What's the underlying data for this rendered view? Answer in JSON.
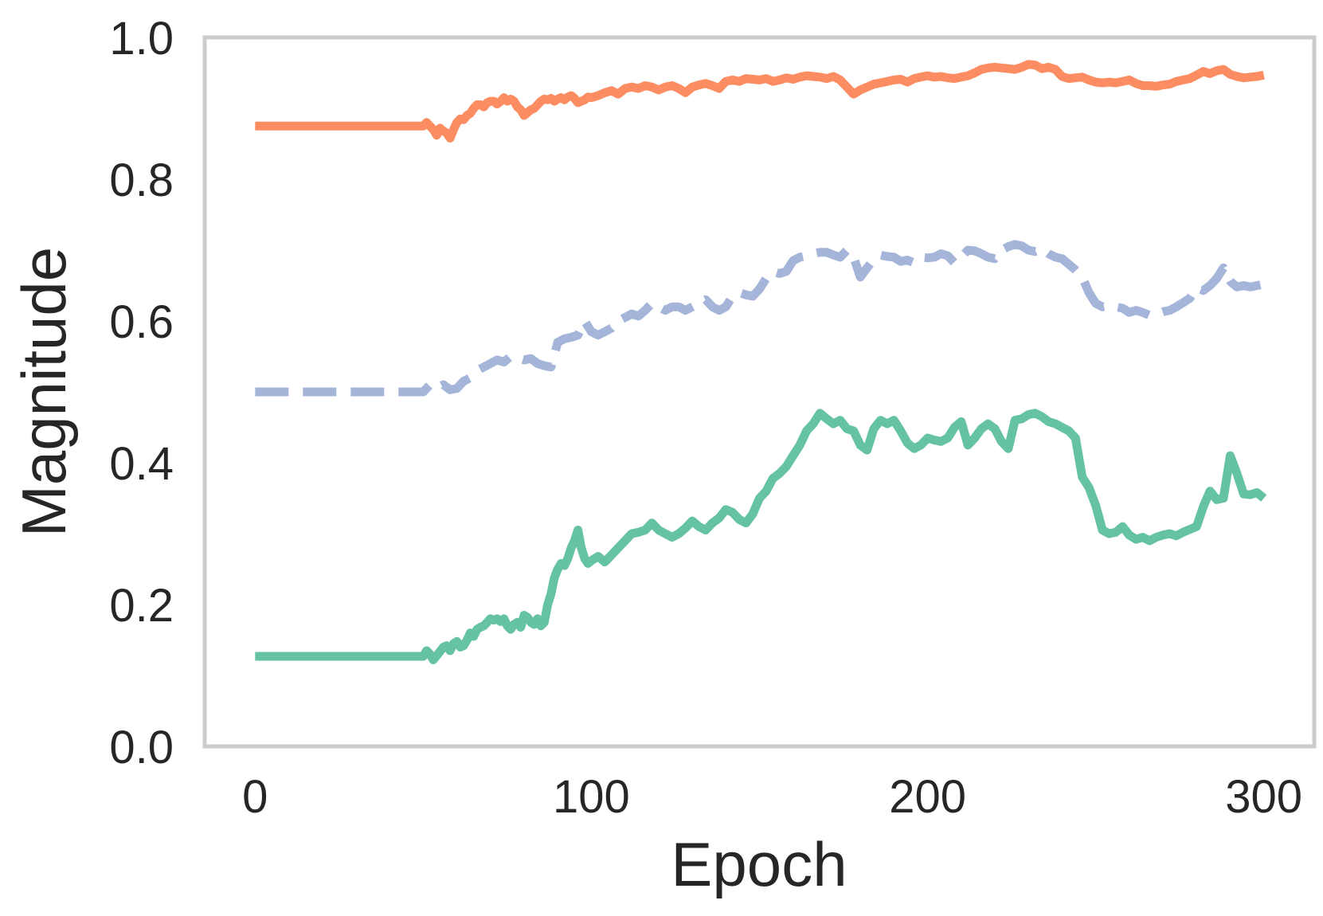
{
  "chart_data": {
    "type": "line",
    "title": "",
    "xlabel": "Epoch",
    "ylabel": "Magnitude",
    "xlim": [
      -15,
      315
    ],
    "ylim": [
      0.0,
      1.0
    ],
    "xticks": [
      0,
      100,
      200,
      300
    ],
    "xtick_labels": [
      "0",
      "100",
      "200",
      "300"
    ],
    "yticks": [
      0.0,
      0.2,
      0.4,
      0.6,
      0.8,
      1.0
    ],
    "ytick_labels": [
      "0.0",
      "0.2",
      "0.4",
      "0.6",
      "0.8",
      "1.0"
    ],
    "grid": false,
    "legend": "none",
    "series": [
      {
        "color": "#fc8d62",
        "style": "solid",
        "x": [
          0,
          50,
          51,
          52,
          53,
          54,
          55,
          56,
          57,
          58,
          59,
          60,
          61,
          62,
          63,
          64,
          65,
          66,
          67,
          68,
          69,
          70,
          71,
          72,
          73,
          74,
          75,
          76,
          77,
          78,
          79,
          80,
          81,
          82,
          83,
          84,
          85,
          86,
          87,
          88,
          89,
          90,
          91,
          92,
          93,
          94,
          95,
          96,
          97,
          98,
          99,
          100,
          102,
          104,
          106,
          108,
          110,
          112,
          114,
          116,
          118,
          120,
          122,
          124,
          126,
          128,
          130,
          132,
          134,
          136,
          138,
          140,
          142,
          144,
          146,
          148,
          150,
          152,
          154,
          156,
          158,
          160,
          162,
          164,
          166,
          168,
          170,
          172,
          174,
          176,
          178,
          180,
          182,
          184,
          186,
          188,
          190,
          192,
          194,
          196,
          198,
          200,
          202,
          204,
          206,
          208,
          210,
          212,
          214,
          216,
          218,
          220,
          222,
          224,
          226,
          228,
          230,
          232,
          234,
          236,
          238,
          240,
          242,
          244,
          246,
          248,
          250,
          252,
          254,
          256,
          258,
          260,
          262,
          264,
          266,
          268,
          270,
          272,
          274,
          276,
          278,
          280,
          282,
          284,
          286,
          288,
          290,
          292,
          294,
          296,
          298,
          300
        ],
        "y": [
          0.875,
          0.875,
          0.88,
          0.875,
          0.87,
          0.862,
          0.872,
          0.868,
          0.865,
          0.858,
          0.87,
          0.88,
          0.885,
          0.884,
          0.89,
          0.893,
          0.9,
          0.905,
          0.905,
          0.902,
          0.908,
          0.91,
          0.91,
          0.906,
          0.91,
          0.915,
          0.91,
          0.913,
          0.91,
          0.902,
          0.898,
          0.89,
          0.894,
          0.898,
          0.9,
          0.905,
          0.91,
          0.913,
          0.912,
          0.914,
          0.91,
          0.913,
          0.915,
          0.912,
          0.916,
          0.918,
          0.914,
          0.908,
          0.91,
          0.912,
          0.916,
          0.915,
          0.918,
          0.922,
          0.925,
          0.92,
          0.928,
          0.93,
          0.928,
          0.932,
          0.93,
          0.926,
          0.93,
          0.932,
          0.928,
          0.922,
          0.93,
          0.933,
          0.935,
          0.932,
          0.928,
          0.938,
          0.94,
          0.938,
          0.942,
          0.941,
          0.94,
          0.942,
          0.938,
          0.94,
          0.943,
          0.941,
          0.944,
          0.946,
          0.945,
          0.944,
          0.942,
          0.945,
          0.94,
          0.93,
          0.92,
          0.926,
          0.93,
          0.934,
          0.936,
          0.938,
          0.94,
          0.941,
          0.937,
          0.942,
          0.944,
          0.946,
          0.944,
          0.945,
          0.943,
          0.942,
          0.944,
          0.946,
          0.95,
          0.955,
          0.957,
          0.958,
          0.957,
          0.956,
          0.955,
          0.958,
          0.962,
          0.961,
          0.956,
          0.958,
          0.955,
          0.945,
          0.942,
          0.943,
          0.944,
          0.94,
          0.937,
          0.936,
          0.937,
          0.936,
          0.938,
          0.94,
          0.935,
          0.932,
          0.932,
          0.931,
          0.933,
          0.934,
          0.938,
          0.94,
          0.942,
          0.947,
          0.952,
          0.949,
          0.953,
          0.955,
          0.948,
          0.945,
          0.943,
          0.944,
          0.945,
          0.947
        ]
      },
      {
        "color": "#a5b5d9",
        "style": "dashed",
        "x": [
          0,
          50,
          52,
          54,
          56,
          58,
          60,
          62,
          64,
          66,
          68,
          70,
          72,
          74,
          76,
          78,
          80,
          82,
          84,
          86,
          88,
          90,
          92,
          94,
          96,
          98,
          100,
          102,
          104,
          106,
          108,
          110,
          112,
          114,
          116,
          118,
          120,
          122,
          124,
          126,
          128,
          130,
          132,
          134,
          136,
          138,
          140,
          142,
          144,
          146,
          148,
          150,
          152,
          154,
          156,
          158,
          160,
          162,
          164,
          166,
          168,
          170,
          172,
          174,
          176,
          178,
          180,
          182,
          184,
          186,
          188,
          190,
          192,
          194,
          196,
          198,
          200,
          202,
          204,
          206,
          208,
          210,
          212,
          214,
          216,
          218,
          220,
          222,
          224,
          226,
          228,
          230,
          232,
          234,
          236,
          238,
          240,
          242,
          244,
          246,
          248,
          250,
          252,
          254,
          256,
          258,
          260,
          262,
          264,
          266,
          268,
          270,
          272,
          274,
          276,
          278,
          280,
          282,
          284,
          286,
          288,
          290,
          292,
          294,
          296,
          298,
          300
        ],
        "y": [
          0.5,
          0.5,
          0.51,
          0.505,
          0.51,
          0.503,
          0.505,
          0.515,
          0.52,
          0.53,
          0.535,
          0.54,
          0.545,
          0.542,
          0.55,
          0.548,
          0.545,
          0.547,
          0.54,
          0.537,
          0.535,
          0.57,
          0.575,
          0.577,
          0.58,
          0.6,
          0.585,
          0.58,
          0.585,
          0.59,
          0.6,
          0.605,
          0.61,
          0.607,
          0.615,
          0.625,
          0.62,
          0.615,
          0.62,
          0.62,
          0.615,
          0.62,
          0.625,
          0.63,
          0.62,
          0.615,
          0.62,
          0.635,
          0.64,
          0.637,
          0.635,
          0.645,
          0.66,
          0.67,
          0.667,
          0.67,
          0.685,
          0.69,
          0.692,
          0.695,
          0.697,
          0.697,
          0.693,
          0.69,
          0.7,
          0.69,
          0.662,
          0.675,
          0.687,
          0.693,
          0.691,
          0.69,
          0.684,
          0.686,
          0.682,
          0.69,
          0.689,
          0.69,
          0.695,
          0.692,
          0.682,
          0.69,
          0.7,
          0.699,
          0.695,
          0.69,
          0.688,
          0.7,
          0.705,
          0.708,
          0.706,
          0.7,
          0.698,
          0.702,
          0.695,
          0.69,
          0.688,
          0.68,
          0.672,
          0.662,
          0.64,
          0.625,
          0.62,
          0.622,
          0.62,
          0.618,
          0.612,
          0.615,
          0.612,
          0.608,
          0.61,
          0.613,
          0.615,
          0.62,
          0.626,
          0.632,
          0.647,
          0.643,
          0.65,
          0.66,
          0.675,
          0.656,
          0.648,
          0.65,
          0.648,
          0.65,
          0.652
        ]
      },
      {
        "color": "#66c2a5",
        "style": "solid",
        "x": [
          0,
          50,
          51,
          52,
          53,
          54,
          55,
          56,
          57,
          58,
          59,
          60,
          61,
          62,
          63,
          64,
          65,
          66,
          67,
          68,
          69,
          70,
          71,
          72,
          73,
          74,
          75,
          76,
          77,
          78,
          79,
          80,
          81,
          82,
          83,
          84,
          85,
          86,
          87,
          88,
          89,
          90,
          91,
          92,
          93,
          94,
          95,
          96,
          97,
          98,
          99,
          100,
          102,
          104,
          106,
          108,
          110,
          112,
          114,
          116,
          118,
          120,
          122,
          124,
          126,
          128,
          130,
          132,
          134,
          136,
          138,
          140,
          142,
          144,
          146,
          148,
          150,
          152,
          154,
          156,
          158,
          160,
          162,
          164,
          166,
          168,
          170,
          172,
          174,
          176,
          178,
          180,
          182,
          184,
          186,
          188,
          190,
          192,
          194,
          196,
          198,
          200,
          202,
          204,
          206,
          208,
          210,
          212,
          214,
          216,
          218,
          220,
          222,
          224,
          226,
          228,
          230,
          232,
          234,
          236,
          238,
          240,
          242,
          244,
          246,
          248,
          250,
          252,
          254,
          256,
          258,
          260,
          262,
          264,
          266,
          268,
          270,
          272,
          274,
          276,
          278,
          280,
          282,
          284,
          286,
          288,
          290,
          292,
          294,
          296,
          298,
          300
        ],
        "y": [
          0.127,
          0.127,
          0.135,
          0.13,
          0.122,
          0.128,
          0.134,
          0.14,
          0.142,
          0.135,
          0.145,
          0.148,
          0.14,
          0.142,
          0.15,
          0.16,
          0.155,
          0.165,
          0.168,
          0.17,
          0.175,
          0.18,
          0.178,
          0.18,
          0.176,
          0.18,
          0.17,
          0.165,
          0.172,
          0.175,
          0.168,
          0.185,
          0.182,
          0.175,
          0.172,
          0.18,
          0.17,
          0.175,
          0.2,
          0.215,
          0.238,
          0.25,
          0.258,
          0.255,
          0.265,
          0.28,
          0.29,
          0.305,
          0.28,
          0.265,
          0.258,
          0.262,
          0.268,
          0.26,
          0.27,
          0.28,
          0.29,
          0.3,
          0.302,
          0.305,
          0.315,
          0.305,
          0.3,
          0.295,
          0.3,
          0.308,
          0.318,
          0.31,
          0.305,
          0.315,
          0.322,
          0.334,
          0.33,
          0.32,
          0.315,
          0.328,
          0.35,
          0.36,
          0.378,
          0.385,
          0.395,
          0.41,
          0.425,
          0.445,
          0.455,
          0.47,
          0.462,
          0.455,
          0.46,
          0.448,
          0.445,
          0.425,
          0.418,
          0.448,
          0.46,
          0.455,
          0.46,
          0.445,
          0.428,
          0.42,
          0.425,
          0.435,
          0.432,
          0.43,
          0.435,
          0.45,
          0.458,
          0.425,
          0.435,
          0.448,
          0.455,
          0.448,
          0.43,
          0.42,
          0.46,
          0.462,
          0.468,
          0.47,
          0.465,
          0.458,
          0.455,
          0.45,
          0.445,
          0.435,
          0.38,
          0.365,
          0.34,
          0.305,
          0.3,
          0.302,
          0.31,
          0.298,
          0.292,
          0.295,
          0.29,
          0.295,
          0.298,
          0.3,
          0.297,
          0.302,
          0.306,
          0.31,
          0.338,
          0.36,
          0.348,
          0.35,
          0.41,
          0.385,
          0.356,
          0.355,
          0.358,
          0.35
        ]
      }
    ]
  }
}
